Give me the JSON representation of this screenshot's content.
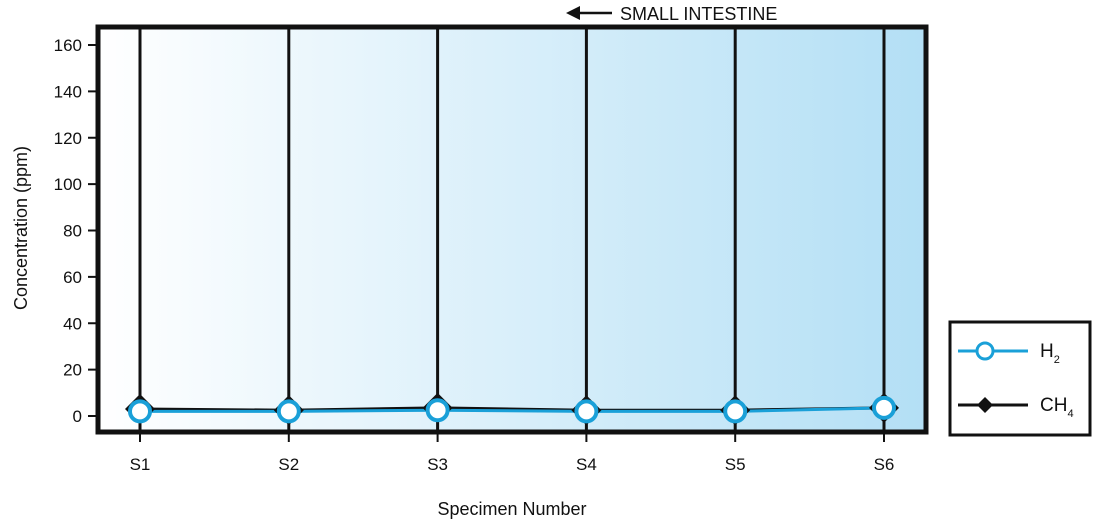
{
  "chart_data": {
    "type": "line",
    "categories": [
      "S1",
      "S2",
      "S3",
      "S4",
      "S5",
      "S6"
    ],
    "series": [
      {
        "name": "H2",
        "display": "H",
        "subscript": "2",
        "values": [
          2,
          2,
          2.5,
          2,
          2,
          3.5
        ],
        "color": "#1aa0d8",
        "marker": "circle"
      },
      {
        "name": "CH4",
        "display": "CH",
        "subscript": "4",
        "values": [
          3,
          2.5,
          3.5,
          2.5,
          2.5,
          3.5
        ],
        "color": "#111111",
        "marker": "diamond"
      }
    ],
    "ylabel": "Concentration (ppm)",
    "xlabel": "Specimen Number",
    "ylim": [
      0,
      160
    ],
    "yticks": [
      0,
      20,
      40,
      60,
      80,
      100,
      120,
      140,
      160
    ],
    "annotation": "SMALL INTESTINE",
    "annotation_arrow": "left",
    "background_gradient": [
      "#ffffff",
      "#b3dff5"
    ],
    "legend_position": "right"
  }
}
